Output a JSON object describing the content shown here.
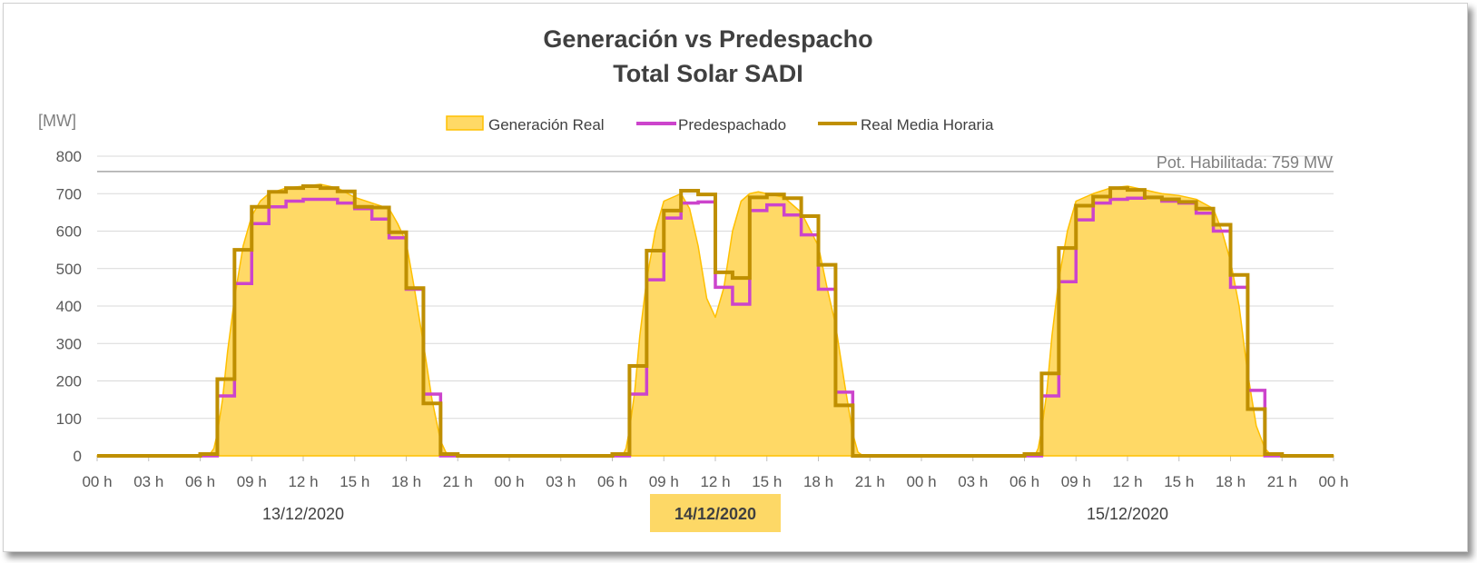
{
  "chart_data": {
    "type": "line",
    "title": "Generación vs Predespacho",
    "subtitle": "Total Solar SADI",
    "y_unit": "[MW]",
    "ylim": [
      0,
      800
    ],
    "y_ticks": [
      0,
      100,
      200,
      300,
      400,
      500,
      600,
      700,
      800
    ],
    "x_range_hours": [
      0,
      72
    ],
    "x_ticks": [
      "00 h",
      "03 h",
      "06 h",
      "09 h",
      "12 h",
      "15 h",
      "18 h",
      "21 h",
      "00 h",
      "03 h",
      "06 h",
      "09 h",
      "12 h",
      "15 h",
      "18 h",
      "21 h",
      "00 h",
      "03 h",
      "06 h",
      "09 h",
      "12 h",
      "15 h",
      "18 h",
      "21 h",
      "00 h"
    ],
    "dates": [
      "13/12/2020",
      "14/12/2020",
      "15/12/2020"
    ],
    "highlighted_date": "14/12/2020",
    "highlight_color": "#fdd866",
    "grid": true,
    "legend_position": "top",
    "reference_line": {
      "value": 759,
      "label": "Pot. Habilitada: 759 MW",
      "color": "#a6a6a6"
    },
    "series": [
      {
        "name": "Generación Real",
        "kind": "area",
        "color": "#ffd966",
        "stroke": "#ffc000",
        "x": [
          0,
          6.5,
          6.8,
          7.0,
          7.3,
          7.6,
          8.0,
          8.5,
          9.0,
          9.5,
          10.0,
          11.0,
          12.0,
          13.0,
          14.0,
          15.0,
          16.0,
          17.0,
          17.5,
          18.0,
          18.5,
          19.0,
          19.5,
          20.0,
          20.3,
          20.6,
          24,
          30.6,
          30.8,
          31.0,
          31.3,
          31.6,
          32.0,
          32.5,
          33.0,
          34.0,
          34.5,
          35.0,
          35.5,
          36.0,
          36.5,
          37.0,
          37.5,
          38.0,
          38.5,
          39.0,
          40.0,
          41.0,
          42.0,
          42.5,
          43.0,
          43.5,
          44.0,
          44.3,
          44.6,
          48,
          54.6,
          54.8,
          55.0,
          55.3,
          55.6,
          56.0,
          56.5,
          57.0,
          58.0,
          59.0,
          60.0,
          61.0,
          62.0,
          63.0,
          64.0,
          65.0,
          65.5,
          66.0,
          66.5,
          67.0,
          67.5,
          68.0,
          68.3,
          68.6,
          72
        ],
        "y": [
          0,
          0,
          20,
          60,
          150,
          280,
          420,
          560,
          640,
          680,
          700,
          715,
          720,
          725,
          715,
          690,
          675,
          660,
          620,
          570,
          440,
          300,
          150,
          40,
          10,
          0,
          0,
          0,
          20,
          70,
          170,
          320,
          470,
          600,
          680,
          700,
          660,
          560,
          420,
          370,
          450,
          600,
          680,
          700,
          705,
          700,
          690,
          650,
          560,
          450,
          350,
          200,
          60,
          10,
          0,
          0,
          0,
          20,
          70,
          170,
          320,
          470,
          600,
          680,
          700,
          715,
          720,
          710,
          700,
          695,
          685,
          660,
          600,
          520,
          400,
          220,
          80,
          20,
          5,
          0,
          0
        ]
      },
      {
        "name": "Predespachado",
        "kind": "step",
        "color": "#cc44cc",
        "hourly": [
          0,
          0,
          0,
          0,
          0,
          0,
          0,
          160,
          460,
          620,
          665,
          680,
          685,
          685,
          675,
          660,
          632,
          582,
          445,
          165,
          0,
          0,
          0,
          0,
          0,
          0,
          0,
          0,
          0,
          0,
          0,
          165,
          470,
          635,
          675,
          678,
          450,
          405,
          655,
          670,
          643,
          590,
          445,
          170,
          0,
          0,
          0,
          0,
          0,
          0,
          0,
          0,
          0,
          0,
          0,
          160,
          465,
          630,
          675,
          685,
          688,
          690,
          680,
          675,
          648,
          600,
          450,
          175,
          0,
          0,
          0,
          0
        ]
      },
      {
        "name": "Real Media Horaria",
        "kind": "step",
        "color": "#bf8f00",
        "hourly": [
          0,
          0,
          0,
          0,
          0,
          0,
          5,
          205,
          550,
          665,
          705,
          715,
          720,
          715,
          706,
          665,
          663,
          597,
          448,
          140,
          5,
          0,
          0,
          0,
          0,
          0,
          0,
          0,
          0,
          0,
          5,
          240,
          548,
          655,
          708,
          698,
          490,
          475,
          690,
          698,
          688,
          640,
          510,
          135,
          0,
          0,
          0,
          0,
          0,
          0,
          0,
          0,
          0,
          0,
          5,
          220,
          555,
          668,
          692,
          715,
          710,
          690,
          685,
          678,
          660,
          617,
          483,
          125,
          5,
          0,
          0,
          0
        ]
      }
    ]
  }
}
